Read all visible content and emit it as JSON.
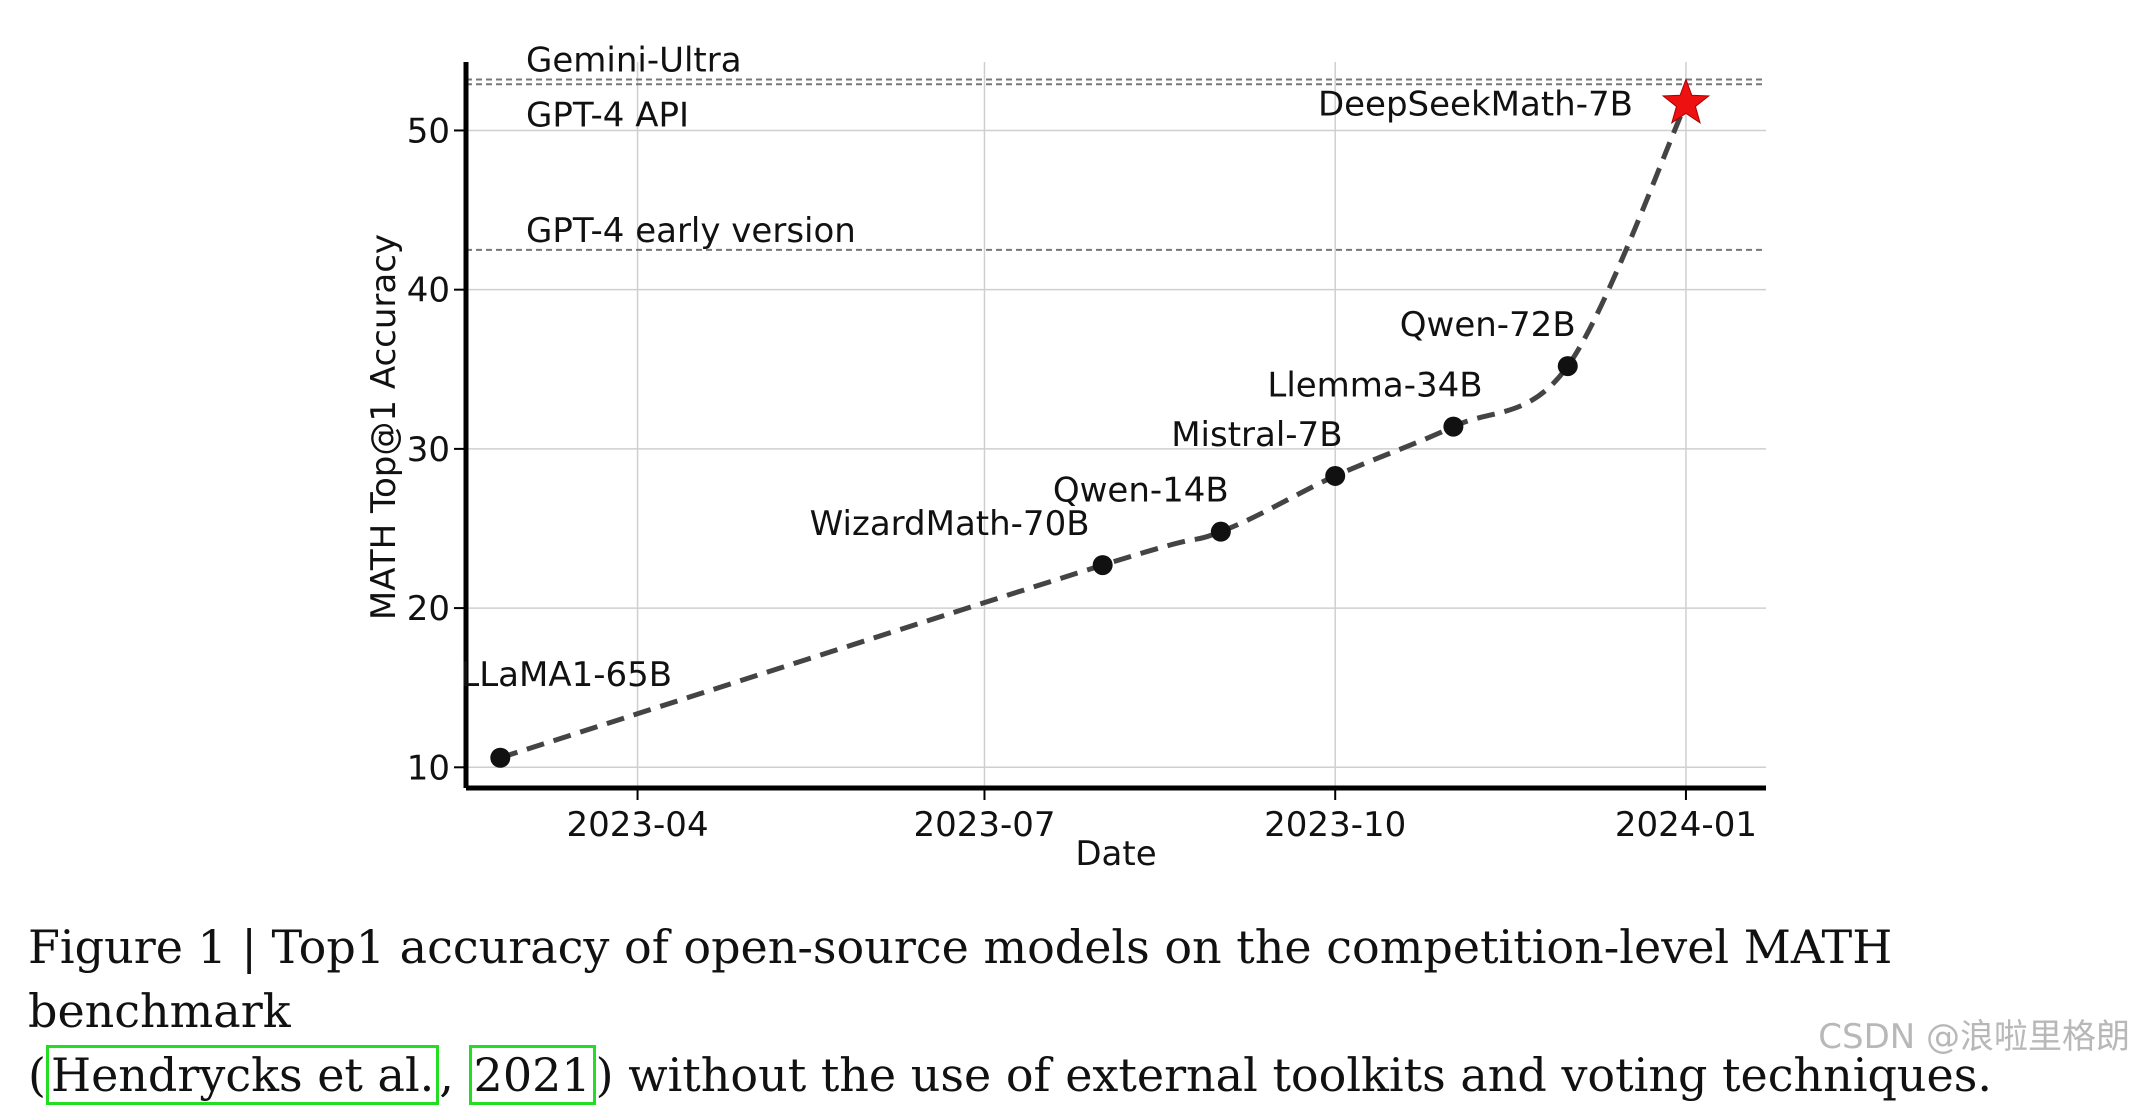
{
  "chart_data": {
    "type": "line",
    "title": "",
    "xlabel": "Date",
    "ylabel": "MATH Top@1 Accuracy",
    "xlim": [
      "2023-02-15",
      "2024-01-22"
    ],
    "ylim": [
      8.7,
      54.3
    ],
    "x_ticks": [
      {
        "label": "2023-04",
        "date": "2023-04-01"
      },
      {
        "label": "2023-07",
        "date": "2023-07-01"
      },
      {
        "label": "2023-10",
        "date": "2023-10-01"
      },
      {
        "label": "2024-01",
        "date": "2024-01-01"
      }
    ],
    "y_ticks": [
      10,
      20,
      30,
      40,
      50
    ],
    "grid": true,
    "points": [
      {
        "label": "LLaMA1-65B",
        "date": "2023-02-24",
        "value": 10.6,
        "marker": "circle"
      },
      {
        "label": "WizardMath-70B",
        "date": "2023-08-01",
        "value": 22.7,
        "marker": "circle"
      },
      {
        "label": "Qwen-14B",
        "date": "2023-09-01",
        "value": 24.8,
        "marker": "circle"
      },
      {
        "label": "Mistral-7B",
        "date": "2023-10-01",
        "value": 28.3,
        "marker": "circle"
      },
      {
        "label": "Llemma-34B",
        "date": "2023-11-01",
        "value": 31.4,
        "marker": "circle"
      },
      {
        "label": "Qwen-72B",
        "date": "2023-12-01",
        "value": 35.2,
        "marker": "circle"
      },
      {
        "label": "DeepSeekMath-7B",
        "date": "2024-01-01",
        "value": 51.7,
        "marker": "star",
        "color": "#ee1111"
      }
    ],
    "reference_lines": [
      {
        "label": "Gemini-Ultra",
        "value": 53.2
      },
      {
        "label": "GPT-4 API",
        "value": 52.9
      },
      {
        "label": "GPT-4 early version",
        "value": 42.5
      }
    ],
    "line_style": "dashed",
    "line_color": "#444444"
  },
  "caption": {
    "prefix": "Figure 1 | Top1 accuracy of open-source models on the competition-level MATH benchmark",
    "open_paren": "(",
    "cite_author": "Hendrycks et al.",
    "separator": ",",
    "cite_year": "2021",
    "suffix": ") without the use of external toolkits and voting techniques."
  },
  "watermark": "CSDN @浪啦里格朗",
  "colors": {
    "highlight_star": "#ee1111",
    "cite_box": "#22dd22"
  }
}
